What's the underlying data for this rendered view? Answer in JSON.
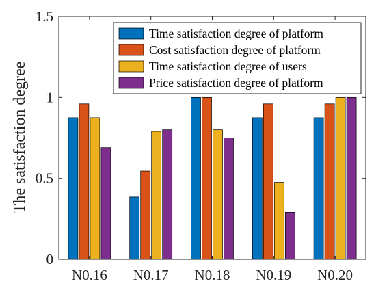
{
  "chart_data": {
    "type": "bar",
    "title": "",
    "xlabel": "",
    "ylabel": "The satisfaction degree",
    "ylim": [
      0,
      1.5
    ],
    "yticks": [
      0,
      0.5,
      1,
      1.5
    ],
    "ytick_labels": [
      "0",
      "0.5",
      "1",
      "1.5"
    ],
    "grid": false,
    "legend_position": "top-right",
    "categories": [
      "N0.16",
      "N0.17",
      "N0.18",
      "N0.19",
      "N0.20"
    ],
    "series": [
      {
        "name": "Time satisfaction degree of platform",
        "color": "#0072BD",
        "values": [
          0.875,
          0.385,
          1.0,
          0.875,
          0.875
        ]
      },
      {
        "name": "Cost satisfaction degree of platform",
        "color": "#D95319",
        "values": [
          0.96,
          0.545,
          1.0,
          0.96,
          0.96
        ]
      },
      {
        "name": "Time satisfaction degree of users",
        "color": "#EDB120",
        "values": [
          0.875,
          0.79,
          0.8,
          0.475,
          1.0
        ]
      },
      {
        "name": "Price satisfaction degree of platform",
        "color": "#7E2F8E",
        "values": [
          0.69,
          0.8,
          0.75,
          0.29,
          1.0
        ]
      }
    ]
  }
}
